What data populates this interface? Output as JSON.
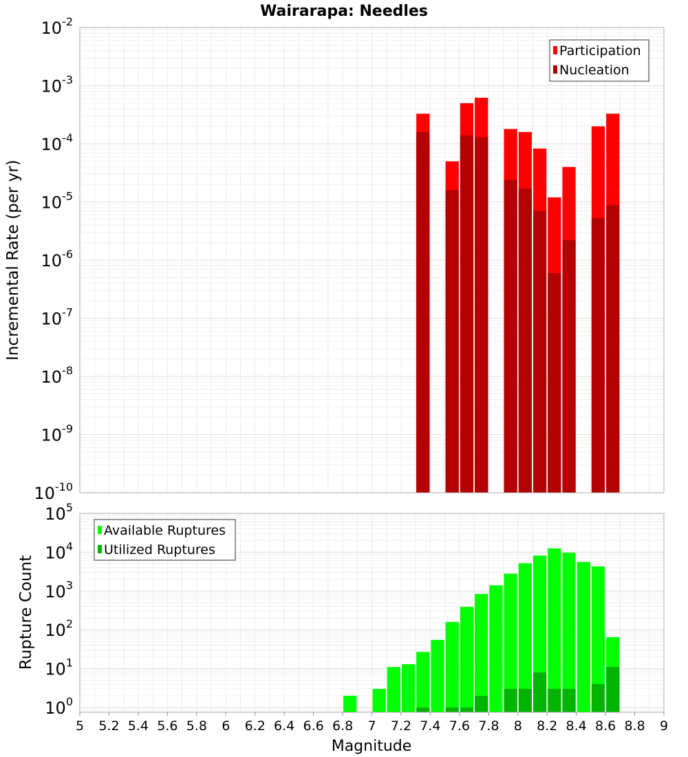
{
  "title": "Wairarapa: Needles",
  "xlabel": "Magnitude",
  "x_ticks": [
    5,
    5.2,
    5.4,
    5.6,
    5.8,
    6,
    6.2,
    6.4,
    6.6,
    6.8,
    7,
    7.2,
    7.4,
    7.6,
    7.8,
    8,
    8.2,
    8.4,
    8.6,
    8.8,
    9
  ],
  "chart_data": [
    {
      "type": "bar",
      "ylabel": "Incremental Rate (per yr)",
      "xlim": [
        5,
        9
      ],
      "ylim": [
        1e-10,
        0.01
      ],
      "yscale": "log",
      "y_tick_exponents": [
        -10,
        -9,
        -8,
        -7,
        -6,
        -5,
        -4,
        -3,
        -2
      ],
      "grid": true,
      "legend_position": "top-right",
      "bin_width": 0.1,
      "overlay": true,
      "series": [
        {
          "name": "Participation",
          "color": "#ff0000",
          "x": [
            7.35,
            7.55,
            7.65,
            7.75,
            7.95,
            8.05,
            8.15,
            8.25,
            8.35,
            8.55,
            8.65
          ],
          "values": [
            0.00033,
            5e-05,
            0.0005,
            0.00062,
            0.00018,
            0.00016,
            8.3e-05,
            1.2e-05,
            4e-05,
            0.0002,
            0.00033
          ]
        },
        {
          "name": "Nucleation",
          "color": "#b30000",
          "x": [
            7.35,
            7.55,
            7.65,
            7.75,
            7.95,
            8.05,
            8.15,
            8.25,
            8.35,
            8.55,
            8.65
          ],
          "values": [
            0.00016,
            1.6e-05,
            0.00014,
            0.00013,
            2.4e-05,
            1.7e-05,
            7e-06,
            6e-07,
            2.2e-06,
            5.3e-06,
            8.8e-06
          ]
        }
      ]
    },
    {
      "type": "bar",
      "ylabel": "Rupture Count",
      "xlim": [
        5,
        9
      ],
      "ylim": [
        0.75,
        100000
      ],
      "yscale": "log",
      "y_tick_exponents": [
        0,
        1,
        2,
        3,
        4,
        5
      ],
      "grid": true,
      "legend_position": "top-left",
      "bin_width": 0.1,
      "overlay": true,
      "series": [
        {
          "name": "Available Ruptures",
          "color": "#00ff00",
          "x": [
            6.85,
            7.05,
            7.15,
            7.25,
            7.35,
            7.45,
            7.55,
            7.65,
            7.75,
            7.85,
            7.95,
            8.05,
            8.15,
            8.25,
            8.35,
            8.45,
            8.55,
            8.65
          ],
          "values": [
            2,
            3,
            11,
            13,
            27,
            55,
            160,
            390,
            840,
            1400,
            2800,
            5200,
            8200,
            12500,
            9700,
            5600,
            4300,
            65
          ]
        },
        {
          "name": "Utilized Ruptures",
          "color": "#00b300",
          "x": [
            7.35,
            7.55,
            7.65,
            7.75,
            7.95,
            8.05,
            8.15,
            8.25,
            8.35,
            8.55,
            8.65
          ],
          "values": [
            1,
            1,
            1,
            2,
            3,
            3,
            8,
            3,
            3,
            4,
            11
          ]
        }
      ]
    }
  ]
}
